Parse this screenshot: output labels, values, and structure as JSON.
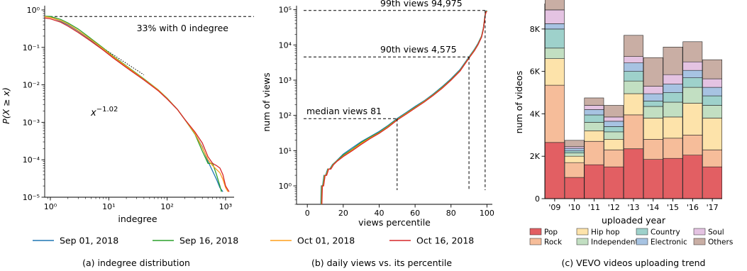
{
  "legend": {
    "entries": [
      {
        "label": "Sep 01, 2018",
        "color": "#1f77b4"
      },
      {
        "label": "Sep 16, 2018",
        "color": "#2ca02c"
      },
      {
        "label": "Oct 01, 2018",
        "color": "#ff9f1c"
      },
      {
        "label": "Oct 16, 2018",
        "color": "#d62728"
      }
    ]
  },
  "chart_data": [
    {
      "type": "line",
      "caption": "(a) indegree distribution",
      "xlabel": "indegree",
      "ylabel": "P(X ≥ x)",
      "xscale": "log",
      "yscale": "log",
      "xlim": [
        0.8,
        1400
      ],
      "ylim": [
        1e-05,
        1.3
      ],
      "xticks": [
        {
          "value": 1,
          "label": "10⁰"
        },
        {
          "value": 10,
          "label": "10¹"
        },
        {
          "value": 100,
          "label": "10²"
        },
        {
          "value": 1000,
          "label": "10³"
        }
      ],
      "yticks": [
        {
          "value": 1,
          "label": "10⁰"
        },
        {
          "value": 0.1,
          "label": "10⁻¹"
        },
        {
          "value": 0.01,
          "label": "10⁻²"
        },
        {
          "value": 0.001,
          "label": "10⁻³"
        },
        {
          "value": 0.0001,
          "label": "10⁻⁴"
        },
        {
          "value": 1e-05,
          "label": "10⁻⁵"
        }
      ],
      "annotation": "33% with 0 indegree",
      "reference_y": 0.67,
      "power_law": {
        "label_base": "x",
        "label_exp": "−1.02",
        "exponent": -1.02,
        "x": [
          5.5,
          40
        ],
        "y": [
          0.14,
          0.0185
        ]
      },
      "series": [
        {
          "name": "Sep 01, 2018",
          "x": [
            0.8,
            1,
            1.5,
            2,
            3,
            5,
            8,
            12,
            20,
            40,
            70,
            100,
            150,
            200,
            300,
            400,
            500,
            600,
            700,
            800,
            900
          ],
          "y": [
            0.67,
            0.64,
            0.5,
            0.4,
            0.27,
            0.155,
            0.09,
            0.055,
            0.031,
            0.014,
            0.0072,
            0.0043,
            0.0022,
            0.0012,
            0.0005,
            0.00022,
            9e-05,
            5e-05,
            3e-05,
            1.8e-05,
            1.4e-05
          ]
        },
        {
          "name": "Sep 16, 2018",
          "x": [
            0.8,
            1,
            1.5,
            2,
            3,
            5,
            8,
            12,
            20,
            40,
            70,
            100,
            150,
            200,
            300,
            400,
            500,
            600,
            700,
            800,
            850
          ],
          "y": [
            0.68,
            0.67,
            0.56,
            0.45,
            0.31,
            0.17,
            0.097,
            0.058,
            0.032,
            0.0145,
            0.0074,
            0.0044,
            0.0022,
            0.0012,
            0.00048,
            0.00017,
            8e-05,
            8e-05,
            4e-05,
            2e-05,
            1.4e-05
          ]
        },
        {
          "name": "Oct 01, 2018",
          "x": [
            0.8,
            1,
            1.5,
            2,
            3,
            5,
            8,
            12,
            20,
            40,
            70,
            100,
            150,
            200,
            300,
            400,
            500,
            600,
            700,
            800,
            900,
            1000,
            1100
          ],
          "y": [
            0.66,
            0.63,
            0.52,
            0.42,
            0.28,
            0.16,
            0.092,
            0.056,
            0.031,
            0.014,
            0.0073,
            0.0043,
            0.0022,
            0.0012,
            0.0005,
            0.00021,
            0.0001,
            7e-05,
            5.5e-05,
            4.5e-05,
            3e-05,
            1.8e-05,
            1.4e-05
          ]
        },
        {
          "name": "Oct 16, 2018",
          "x": [
            0.8,
            1,
            1.5,
            2,
            3,
            5,
            8,
            12,
            20,
            40,
            70,
            100,
            150,
            200,
            300,
            400,
            500,
            600,
            700,
            800,
            900,
            1000,
            1150
          ],
          "y": [
            0.61,
            0.58,
            0.47,
            0.37,
            0.25,
            0.145,
            0.085,
            0.052,
            0.029,
            0.0135,
            0.007,
            0.0042,
            0.0022,
            0.0012,
            0.00055,
            0.00028,
            0.00012,
            8e-05,
            7e-05,
            6e-05,
            4e-05,
            2e-05,
            1.4e-05
          ]
        }
      ]
    },
    {
      "type": "line",
      "caption": "(b) daily views vs. its percentile",
      "xlabel": "views percentile",
      "ylabel": "num of views",
      "yscale": "log",
      "xlim": [
        -6,
        103
      ],
      "ylim": [
        0.3,
        130000
      ],
      "xticks": [
        0,
        20,
        40,
        60,
        80,
        100
      ],
      "yticks": [
        {
          "value": 1,
          "label": "10⁰"
        },
        {
          "value": 10,
          "label": "10¹"
        },
        {
          "value": 100,
          "label": "10²"
        },
        {
          "value": 1000,
          "label": "10³"
        },
        {
          "value": 10000,
          "label": "10⁴"
        },
        {
          "value": 100000,
          "label": "10⁵"
        }
      ],
      "markers": [
        {
          "label": "median views 81",
          "x": 50,
          "y": 81
        },
        {
          "label": "90th views 4,575",
          "x": 90,
          "y": 4575
        },
        {
          "label": "99th views 94,975",
          "x": 99,
          "y": 94975
        }
      ],
      "series": [
        {
          "name": "Sep 01, 2018",
          "x": [
            7.5,
            7.8,
            8.5,
            9.3,
            10.2,
            11.3,
            12.5,
            14,
            16,
            20,
            25,
            30,
            35,
            40,
            45,
            50,
            55,
            60,
            65,
            70,
            75,
            80,
            85,
            90,
            93,
            95,
            97,
            98,
            99,
            99.5,
            100
          ],
          "y": [
            0.3,
            1,
            1,
            2,
            2,
            3,
            3,
            4,
            5,
            8,
            12,
            18,
            25,
            35,
            52,
            82,
            120,
            180,
            260,
            400,
            650,
            1100,
            2000,
            4600,
            7500,
            11000,
            18000,
            30000,
            75000,
            90000,
            95000
          ]
        },
        {
          "name": "Sep 16, 2018",
          "x": [
            7.7,
            8,
            8.7,
            9.5,
            10.4,
            11.5,
            12.7,
            14.2,
            16.2,
            20,
            25,
            30,
            35,
            40,
            45,
            50,
            55,
            60,
            65,
            70,
            75,
            80,
            85,
            90,
            93,
            95,
            97,
            98,
            99,
            99.5,
            100
          ],
          "y": [
            0.3,
            1,
            1,
            2,
            2,
            3,
            3,
            4,
            5,
            7.5,
            11,
            17,
            24,
            33,
            50,
            78,
            115,
            170,
            250,
            385,
            620,
            1050,
            1900,
            4400,
            7200,
            10500,
            17500,
            29000,
            72000,
            88000,
            93000
          ]
        },
        {
          "name": "Oct 01, 2018",
          "x": [
            7.9,
            8.2,
            8.9,
            9.7,
            10.6,
            11.7,
            12.9,
            14.4,
            16.4,
            20,
            25,
            30,
            35,
            40,
            45,
            50,
            55,
            60,
            65,
            70,
            75,
            80,
            85,
            90,
            93,
            95,
            97,
            98,
            99,
            99.5,
            100
          ],
          "y": [
            0.3,
            1,
            1,
            2,
            2,
            3,
            3,
            4,
            5,
            7,
            10.5,
            16,
            23,
            32,
            48,
            76,
            112,
            165,
            245,
            375,
            600,
            1020,
            1850,
            4300,
            7000,
            10200,
            17000,
            28000,
            70000,
            86000,
            91000
          ]
        },
        {
          "name": "Oct 16, 2018",
          "x": [
            8.1,
            8.4,
            9.1,
            9.9,
            10.8,
            11.9,
            13.1,
            14.6,
            16.6,
            20,
            25,
            30,
            35,
            40,
            45,
            50,
            55,
            60,
            65,
            70,
            75,
            80,
            85,
            90,
            93,
            95,
            97,
            98,
            99,
            99.5,
            100
          ],
          "y": [
            0.3,
            1,
            1,
            2,
            2,
            3,
            3,
            4,
            5,
            6.8,
            10,
            15,
            22,
            31,
            46,
            74,
            108,
            160,
            238,
            365,
            585,
            1000,
            1800,
            4200,
            6800,
            10000,
            16500,
            27000,
            68000,
            84000,
            89000
          ]
        }
      ]
    },
    {
      "type": "bar",
      "stacked": true,
      "caption": "(c) VEVO videos uploading trend",
      "xlabel": "uploaded year",
      "ylabel": "num of videos",
      "ylim": [
        0,
        9200
      ],
      "yticks": [
        {
          "value": 0,
          "label": "0"
        },
        {
          "value": 2000,
          "label": "2K"
        },
        {
          "value": 4000,
          "label": "4K"
        },
        {
          "value": 6000,
          "label": "6K"
        },
        {
          "value": 8000,
          "label": "8K"
        }
      ],
      "categories": [
        "'09",
        "'10",
        "'11",
        "'12",
        "'13",
        "'14",
        "'15",
        "'16",
        "'17"
      ],
      "series": [
        {
          "name": "Pop",
          "color": "#e25f63",
          "values": [
            2650,
            1000,
            1600,
            1500,
            2350,
            1850,
            1900,
            2050,
            1500
          ]
        },
        {
          "name": "Rock",
          "color": "#f6bd9a",
          "values": [
            2700,
            700,
            1100,
            800,
            1600,
            950,
            950,
            950,
            800
          ]
        },
        {
          "name": "Hip hop",
          "color": "#fde3aa",
          "values": [
            1250,
            300,
            500,
            500,
            1000,
            1000,
            1000,
            1500,
            1500
          ]
        },
        {
          "name": "Independent",
          "color": "#c2dfc2",
          "values": [
            500,
            150,
            400,
            350,
            600,
            550,
            700,
            750,
            600
          ]
        },
        {
          "name": "Country",
          "color": "#9ed1cb",
          "values": [
            900,
            100,
            350,
            250,
            450,
            250,
            450,
            450,
            450
          ]
        },
        {
          "name": "Electronic",
          "color": "#a7c3e2",
          "values": [
            250,
            120,
            250,
            250,
            400,
            350,
            400,
            350,
            400
          ]
        },
        {
          "name": "Soul",
          "color": "#e4c3e2",
          "values": [
            650,
            80,
            200,
            200,
            300,
            350,
            450,
            400,
            400
          ]
        },
        {
          "name": "Others",
          "color": "#c9aea4",
          "values": [
            600,
            300,
            350,
            550,
            1000,
            1350,
            1300,
            950,
            900
          ]
        }
      ],
      "legend_order": [
        "Pop",
        "Hip hop",
        "Country",
        "Soul",
        "Rock",
        "Independent",
        "Electronic",
        "Others"
      ]
    }
  ]
}
